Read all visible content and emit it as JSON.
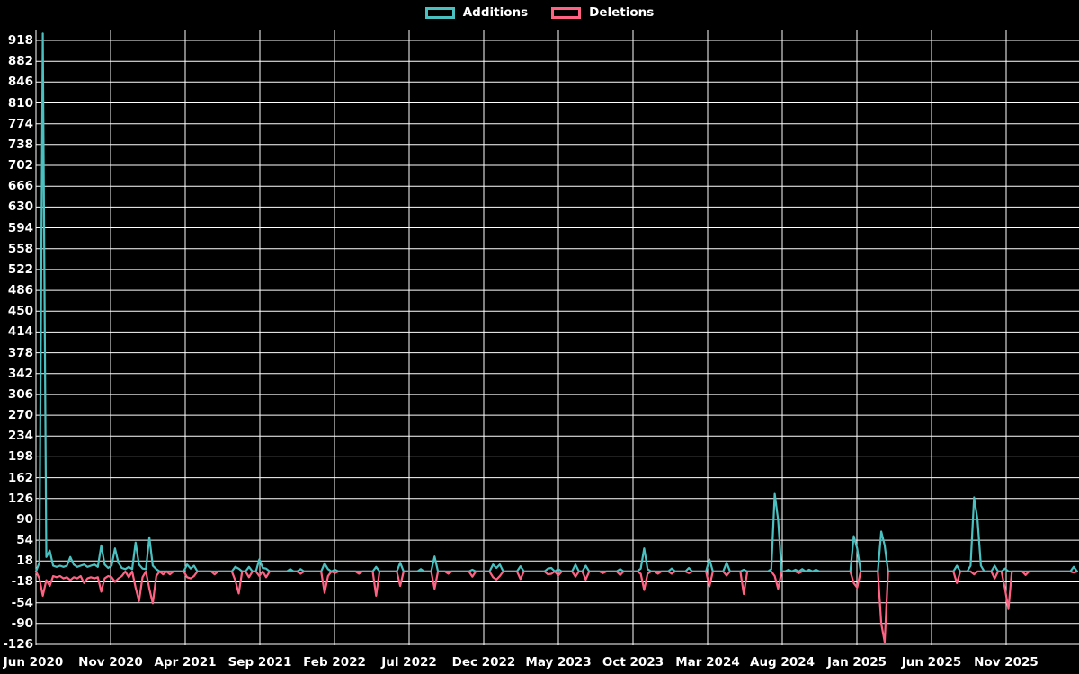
{
  "legend": {
    "items": [
      {
        "label": "Additions",
        "color": "#4bc0c0"
      },
      {
        "label": "Deletions",
        "color": "#ff6384"
      }
    ]
  },
  "chart_data": {
    "type": "line",
    "title": "",
    "xlabel": "",
    "ylabel": "",
    "background_color": "#000000",
    "grid_color": "#ffffff",
    "grid": true,
    "legend_position": "top-center",
    "x_tick_labels": [
      "Jun 2020",
      "Nov 2020",
      "Apr 2021",
      "Sep 2021",
      "Feb 2022",
      "Jul 2022",
      "Dec 2022",
      "May 2023",
      "Oct 2023",
      "Mar 2024",
      "Aug 2024",
      "Jan 2025",
      "Jun 2025",
      "Nov 2025"
    ],
    "y_ticks": [
      918,
      882,
      846,
      810,
      774,
      738,
      702,
      666,
      630,
      594,
      558,
      522,
      486,
      450,
      414,
      378,
      342,
      306,
      270,
      234,
      198,
      162,
      126,
      90,
      54,
      18,
      -18,
      -54,
      -90,
      -126
    ],
    "y_range": [
      -128,
      937
    ],
    "x_unit": "week",
    "weeks_total": 304,
    "series": [
      {
        "name": "Additions",
        "color": "#4bc0c0",
        "default_value": 0,
        "points_sparse": [
          [
            1,
            15
          ],
          [
            2,
            930
          ],
          [
            3,
            25
          ],
          [
            4,
            36
          ],
          [
            5,
            10
          ],
          [
            6,
            8
          ],
          [
            7,
            10
          ],
          [
            8,
            8
          ],
          [
            9,
            10
          ],
          [
            10,
            25
          ],
          [
            11,
            12
          ],
          [
            12,
            8
          ],
          [
            13,
            10
          ],
          [
            14,
            12
          ],
          [
            15,
            8
          ],
          [
            16,
            10
          ],
          [
            17,
            12
          ],
          [
            18,
            8
          ],
          [
            19,
            45
          ],
          [
            20,
            12
          ],
          [
            21,
            6
          ],
          [
            22,
            10
          ],
          [
            23,
            40
          ],
          [
            24,
            15
          ],
          [
            25,
            6
          ],
          [
            26,
            4
          ],
          [
            27,
            8
          ],
          [
            28,
            4
          ],
          [
            29,
            50
          ],
          [
            30,
            12
          ],
          [
            31,
            5
          ],
          [
            32,
            4
          ],
          [
            33,
            59
          ],
          [
            34,
            10
          ],
          [
            35,
            4
          ],
          [
            44,
            12
          ],
          [
            45,
            5
          ],
          [
            46,
            10
          ],
          [
            58,
            8
          ],
          [
            59,
            5
          ],
          [
            62,
            8
          ],
          [
            65,
            21
          ],
          [
            66,
            6
          ],
          [
            67,
            5
          ],
          [
            74,
            4
          ],
          [
            77,
            4
          ],
          [
            84,
            14
          ],
          [
            85,
            4
          ],
          [
            87,
            3
          ],
          [
            99,
            8
          ],
          [
            106,
            15
          ],
          [
            112,
            4
          ],
          [
            116,
            26
          ],
          [
            127,
            3
          ],
          [
            133,
            12
          ],
          [
            134,
            6
          ],
          [
            135,
            12
          ],
          [
            141,
            9
          ],
          [
            149,
            5
          ],
          [
            150,
            6
          ],
          [
            152,
            4
          ],
          [
            157,
            12
          ],
          [
            160,
            10
          ],
          [
            170,
            4
          ],
          [
            176,
            5
          ],
          [
            177,
            40
          ],
          [
            178,
            4
          ],
          [
            185,
            5
          ],
          [
            190,
            6
          ],
          [
            196,
            21
          ],
          [
            201,
            15
          ],
          [
            206,
            3
          ],
          [
            214,
            4
          ],
          [
            215,
            134
          ],
          [
            216,
            89
          ],
          [
            219,
            3
          ],
          [
            221,
            3
          ],
          [
            223,
            4
          ],
          [
            225,
            3
          ],
          [
            227,
            3
          ],
          [
            238,
            61
          ],
          [
            239,
            40
          ],
          [
            246,
            69
          ],
          [
            247,
            45
          ],
          [
            268,
            10
          ],
          [
            272,
            10
          ],
          [
            273,
            128
          ],
          [
            274,
            90
          ],
          [
            275,
            10
          ],
          [
            279,
            10
          ],
          [
            282,
            5
          ],
          [
            302,
            8
          ]
        ]
      },
      {
        "name": "Deletions",
        "color": "#ff6384",
        "default_value": 0,
        "points_sparse": [
          [
            1,
            -12
          ],
          [
            2,
            -42
          ],
          [
            3,
            -15
          ],
          [
            4,
            -25
          ],
          [
            5,
            -8
          ],
          [
            6,
            -10
          ],
          [
            7,
            -8
          ],
          [
            8,
            -12
          ],
          [
            9,
            -10
          ],
          [
            10,
            -15
          ],
          [
            11,
            -10
          ],
          [
            12,
            -12
          ],
          [
            13,
            -8
          ],
          [
            14,
            -20
          ],
          [
            15,
            -12
          ],
          [
            16,
            -10
          ],
          [
            17,
            -12
          ],
          [
            18,
            -10
          ],
          [
            19,
            -35
          ],
          [
            20,
            -12
          ],
          [
            21,
            -8
          ],
          [
            22,
            -10
          ],
          [
            23,
            -18
          ],
          [
            24,
            -12
          ],
          [
            25,
            -8
          ],
          [
            27,
            -10
          ],
          [
            29,
            -28
          ],
          [
            30,
            -51
          ],
          [
            31,
            -10
          ],
          [
            33,
            -30
          ],
          [
            34,
            -55
          ],
          [
            35,
            -8
          ],
          [
            37,
            -5
          ],
          [
            39,
            -5
          ],
          [
            44,
            -10
          ],
          [
            45,
            -12
          ],
          [
            46,
            -8
          ],
          [
            52,
            -5
          ],
          [
            58,
            -15
          ],
          [
            59,
            -38
          ],
          [
            62,
            -10
          ],
          [
            65,
            -8
          ],
          [
            67,
            -10
          ],
          [
            77,
            -4
          ],
          [
            84,
            -37
          ],
          [
            85,
            -8
          ],
          [
            87,
            -3
          ],
          [
            94,
            -4
          ],
          [
            99,
            -42
          ],
          [
            106,
            -25
          ],
          [
            116,
            -30
          ],
          [
            120,
            -4
          ],
          [
            127,
            -9
          ],
          [
            133,
            -10
          ],
          [
            134,
            -14
          ],
          [
            135,
            -8
          ],
          [
            141,
            -13
          ],
          [
            149,
            -5
          ],
          [
            150,
            -4
          ],
          [
            152,
            -7
          ],
          [
            157,
            -9
          ],
          [
            160,
            -14
          ],
          [
            165,
            -3
          ],
          [
            170,
            -6
          ],
          [
            176,
            -4
          ],
          [
            177,
            -32
          ],
          [
            178,
            -4
          ],
          [
            181,
            -4
          ],
          [
            185,
            -4
          ],
          [
            190,
            -3
          ],
          [
            196,
            -26
          ],
          [
            201,
            -7
          ],
          [
            206,
            -39
          ],
          [
            215,
            -8
          ],
          [
            216,
            -30
          ],
          [
            222,
            -3
          ],
          [
            238,
            -20
          ],
          [
            239,
            -28
          ],
          [
            246,
            -90
          ],
          [
            247,
            -122
          ],
          [
            268,
            -20
          ],
          [
            273,
            -5
          ],
          [
            279,
            -12
          ],
          [
            282,
            -30
          ],
          [
            283,
            -65
          ],
          [
            288,
            -6
          ],
          [
            302,
            -2
          ]
        ]
      }
    ]
  }
}
